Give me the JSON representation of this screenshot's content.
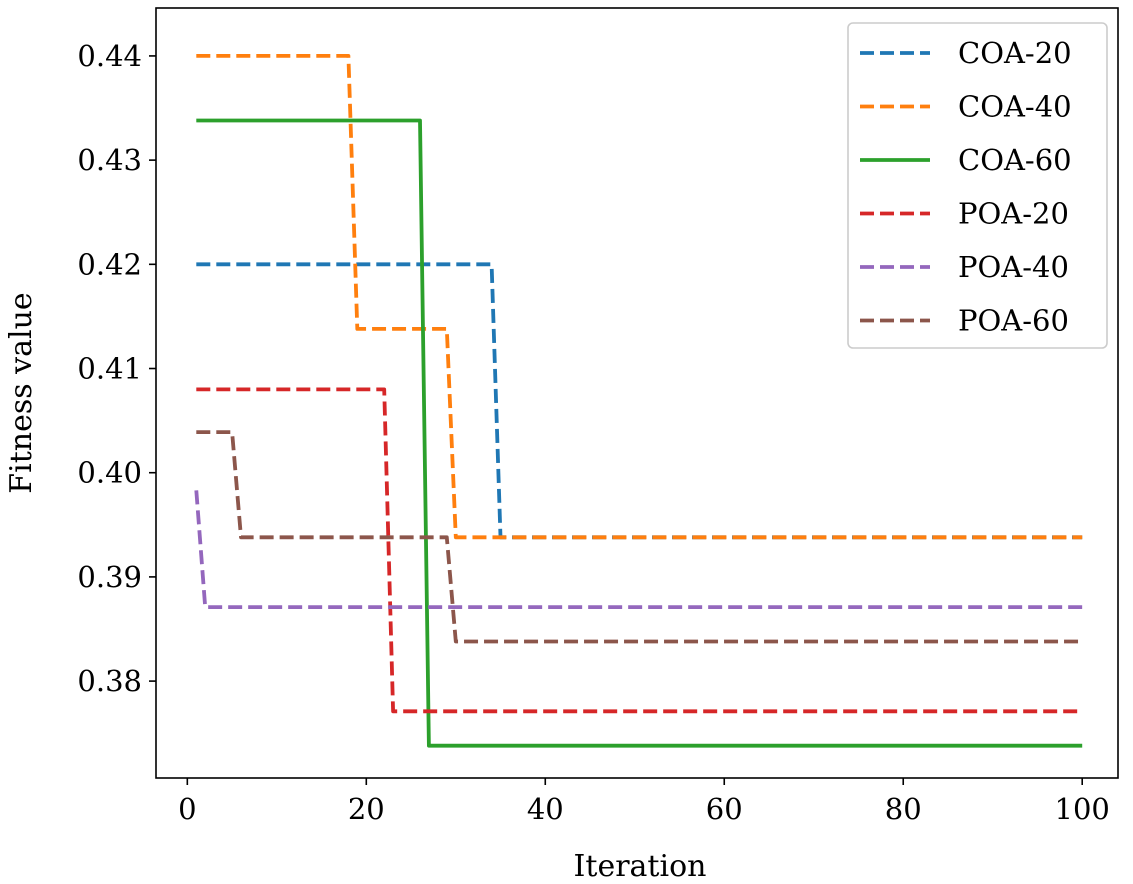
{
  "chart_data": {
    "type": "line",
    "title": "",
    "xlabel": "Iteration",
    "ylabel": "Fitness value",
    "xlim": [
      -3.5,
      104
    ],
    "ylim": [
      0.3707,
      0.4446
    ],
    "xticks": [
      0,
      20,
      40,
      60,
      80,
      100
    ],
    "xtick_labels": [
      "0",
      "20",
      "40",
      "60",
      "80",
      "100"
    ],
    "yticks": [
      0.38,
      0.39,
      0.4,
      0.41,
      0.42,
      0.43,
      0.44
    ],
    "ytick_labels": [
      "0.38",
      "0.39",
      "0.40",
      "0.41",
      "0.42",
      "0.43",
      "0.44"
    ],
    "grid": false,
    "legend_position": "top-right",
    "series": [
      {
        "name": "COA-20",
        "color": "#1f77b4",
        "style": "dashed",
        "points": [
          [
            1,
            0.42
          ],
          [
            34,
            0.42
          ],
          [
            35,
            0.3938
          ],
          [
            100,
            0.3938
          ]
        ]
      },
      {
        "name": "COA-40",
        "color": "#ff7f0e",
        "style": "dashed",
        "points": [
          [
            1,
            0.44
          ],
          [
            18,
            0.44
          ],
          [
            19,
            0.4138
          ],
          [
            29,
            0.4138
          ],
          [
            30,
            0.3938
          ],
          [
            100,
            0.3938
          ]
        ]
      },
      {
        "name": "COA-60",
        "color": "#2ca02c",
        "style": "solid",
        "points": [
          [
            1,
            0.4338
          ],
          [
            26,
            0.4338
          ],
          [
            27,
            0.3738
          ],
          [
            100,
            0.3738
          ]
        ]
      },
      {
        "name": "POA-20",
        "color": "#d62728",
        "style": "dashed",
        "points": [
          [
            1,
            0.408
          ],
          [
            22,
            0.408
          ],
          [
            23,
            0.3771
          ],
          [
            100,
            0.3771
          ]
        ]
      },
      {
        "name": "POA-40",
        "color": "#9467bd",
        "style": "dashed",
        "points": [
          [
            1,
            0.3983
          ],
          [
            2,
            0.3871
          ],
          [
            100,
            0.3871
          ]
        ]
      },
      {
        "name": "POA-60",
        "color": "#8c564b",
        "style": "dashed",
        "points": [
          [
            1,
            0.4039
          ],
          [
            5,
            0.4039
          ],
          [
            6,
            0.3938
          ],
          [
            29,
            0.3938
          ],
          [
            30,
            0.3838
          ],
          [
            100,
            0.3838
          ]
        ]
      }
    ]
  }
}
